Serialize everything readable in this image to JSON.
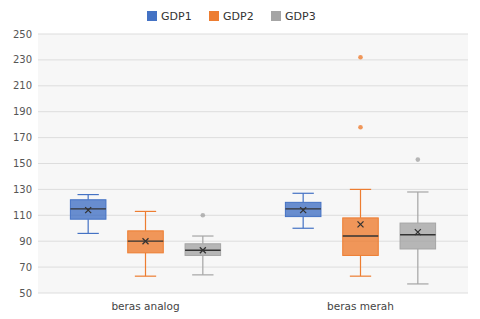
{
  "chart_data": {
    "type": "box",
    "categories": [
      "beras analog",
      "beras merah"
    ],
    "series": [
      {
        "name": "GDP1",
        "color": "#4472C4",
        "q1": [
          107,
          109
        ],
        "median": [
          115,
          115
        ],
        "q3": [
          122,
          120
        ],
        "whislo": [
          96,
          100
        ],
        "whishi": [
          126,
          127
        ],
        "mean": [
          114,
          114
        ],
        "fliers": [
          [],
          []
        ]
      },
      {
        "name": "GDP2",
        "color": "#ED7D31",
        "q1": [
          81,
          79
        ],
        "median": [
          90,
          94
        ],
        "q3": [
          98,
          108
        ],
        "whislo": [
          63,
          63
        ],
        "whishi": [
          113,
          130
        ],
        "mean": [
          90,
          103
        ],
        "fliers": [
          [],
          [
            178,
            232
          ]
        ]
      },
      {
        "name": "GDP3",
        "color": "#A5A5A5",
        "q1": [
          79,
          84
        ],
        "median": [
          83,
          95
        ],
        "q3": [
          88,
          104
        ],
        "whislo": [
          64,
          57
        ],
        "whishi": [
          94,
          128
        ],
        "mean": [
          83,
          97
        ],
        "fliers": [
          [
            110
          ],
          [
            153
          ]
        ]
      }
    ],
    "ylim": [
      50,
      250
    ],
    "yticks": [
      50,
      70,
      90,
      110,
      130,
      150,
      170,
      190,
      210,
      230,
      250
    ],
    "grid": true,
    "legend": "top"
  }
}
